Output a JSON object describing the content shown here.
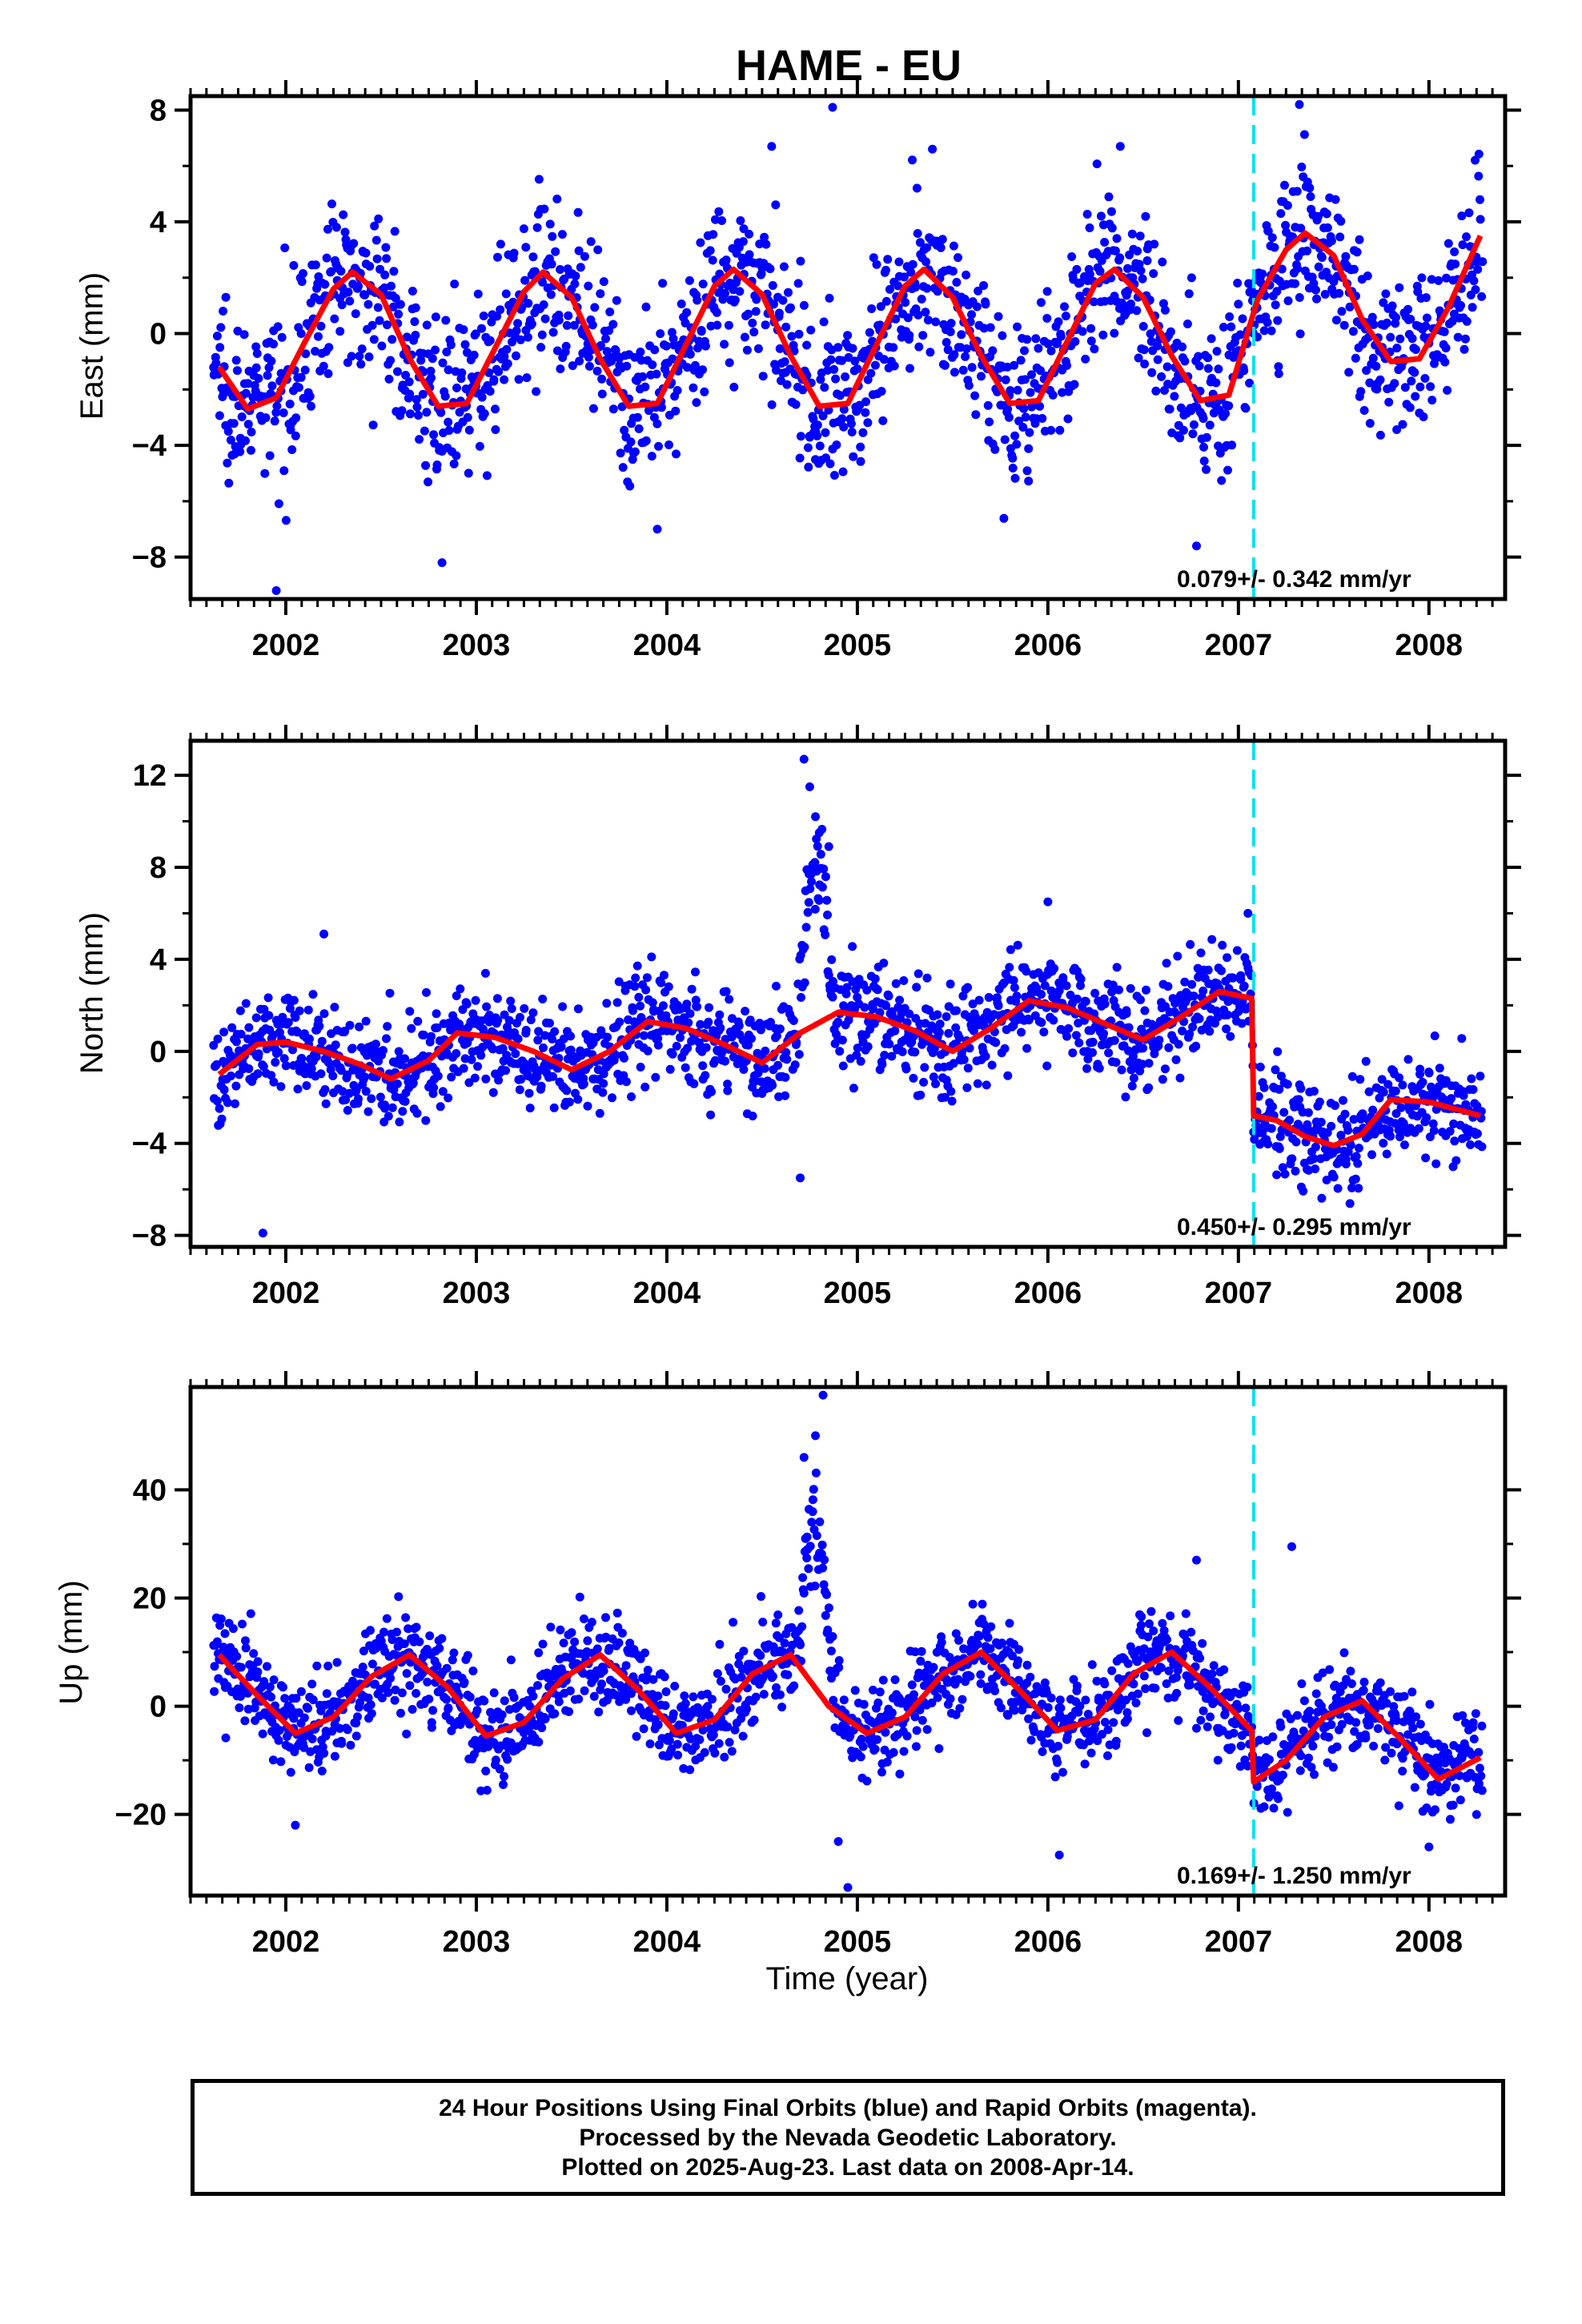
{
  "title": "HAME - EU",
  "xlabel": "Time (year)",
  "caption": {
    "line1": "24 Hour Positions Using Final Orbits (blue) and Rapid Orbits (magenta).",
    "line2": "Processed by the Nevada Geodetic Laboratory.",
    "line3": "Plotted on 2025-Aug-23. Last data on 2008-Apr-14."
  },
  "colors": {
    "final_orbits": "#0000ff",
    "model": "#ff0000",
    "event_line": "#00e5ee",
    "frame": "#000000"
  },
  "chart_data": [
    {
      "type": "scatter",
      "ylabel": "East (mm)",
      "rate_text": "0.079+/- 0.342 mm/yr",
      "xlim": [
        2001.5,
        2008.4
      ],
      "ylim": [
        -9.5,
        8.5
      ],
      "x_ticks": [
        2002,
        2003,
        2004,
        2005,
        2006,
        2007,
        2008
      ],
      "y_ticks": [
        -8,
        -4,
        0,
        4,
        8
      ],
      "event_lines_x": [
        2007.08
      ],
      "model_series": {
        "name": "model",
        "x": [
          2001.65,
          2001.8,
          2001.95,
          2002.1,
          2002.25,
          2002.35,
          2002.5,
          2002.65,
          2002.8,
          2002.95,
          2003.1,
          2003.25,
          2003.35,
          2003.5,
          2003.65,
          2003.8,
          2003.95,
          2004.1,
          2004.25,
          2004.35,
          2004.5,
          2004.65,
          2004.8,
          2004.95,
          2005.1,
          2005.25,
          2005.35,
          2005.5,
          2005.65,
          2005.8,
          2005.95,
          2006.1,
          2006.25,
          2006.35,
          2006.5,
          2006.65,
          2006.8,
          2006.95,
          2007.1,
          2007.25,
          2007.35,
          2007.5,
          2007.65,
          2007.8,
          2007.95,
          2008.1,
          2008.27
        ],
        "y": [
          -1.2,
          -2.7,
          -2.3,
          -0.3,
          1.6,
          2.2,
          1.4,
          -0.9,
          -2.6,
          -2.5,
          -0.5,
          1.5,
          2.2,
          1.3,
          -0.9,
          -2.6,
          -2.5,
          -0.4,
          1.7,
          2.3,
          1.4,
          -0.8,
          -2.6,
          -2.5,
          -0.4,
          1.7,
          2.3,
          1.3,
          -0.8,
          -2.5,
          -2.4,
          -0.3,
          1.8,
          2.3,
          1.3,
          -0.8,
          -2.4,
          -2.2,
          1.2,
          3.0,
          3.6,
          2.8,
          0.5,
          -1.0,
          -0.9,
          0.9,
          3.5
        ]
      },
      "point_cloud": {
        "x_start": 2001.62,
        "x_end": 2008.28,
        "count": 1700,
        "scatter_mm": 1.45,
        "outliers": [
          [
            2001.95,
            -9.2
          ],
          [
            2002.82,
            -8.2
          ],
          [
            2004.87,
            8.1
          ],
          [
            2007.32,
            8.2
          ],
          [
            2006.78,
            -7.6
          ],
          [
            2004.55,
            6.7
          ],
          [
            2006.38,
            6.7
          ],
          [
            2003.95,
            -7.0
          ]
        ]
      }
    },
    {
      "type": "scatter",
      "ylabel": "North (mm)",
      "rate_text": "0.450+/- 0.295 mm/yr",
      "xlim": [
        2001.5,
        2008.4
      ],
      "ylim": [
        -8.5,
        13.5
      ],
      "x_ticks": [
        2002,
        2003,
        2004,
        2005,
        2006,
        2007,
        2008
      ],
      "y_ticks": [
        -8,
        -4,
        0,
        4,
        8,
        12
      ],
      "event_lines_x": [
        2007.08
      ],
      "model_series": {
        "name": "model",
        "x": [
          2001.65,
          2001.85,
          2002.0,
          2002.2,
          2002.4,
          2002.55,
          2002.75,
          2002.9,
          2003.1,
          2003.3,
          2003.5,
          2003.7,
          2003.9,
          2004.1,
          2004.3,
          2004.5,
          2004.7,
          2004.9,
          2005.1,
          2005.3,
          2005.5,
          2005.7,
          2005.9,
          2006.1,
          2006.3,
          2006.5,
          2006.7,
          2006.9,
          2007.07,
          2007.08,
          2007.2,
          2007.35,
          2007.5,
          2007.65,
          2007.8,
          2008.0,
          2008.27
        ],
        "y": [
          -1.0,
          0.3,
          0.4,
          0.0,
          -0.6,
          -1.2,
          -0.4,
          0.8,
          0.6,
          0.0,
          -0.8,
          0.0,
          1.3,
          1.0,
          0.3,
          -0.5,
          0.8,
          1.7,
          1.5,
          0.9,
          0.0,
          1.0,
          2.2,
          1.9,
          1.2,
          0.5,
          1.5,
          2.6,
          2.3,
          -2.8,
          -3.0,
          -3.7,
          -4.1,
          -3.6,
          -2.1,
          -2.2,
          -2.8
        ]
      },
      "point_cloud": {
        "x_start": 2001.62,
        "x_end": 2008.28,
        "count": 1700,
        "scatter_mm": 1.1,
        "outliers": [
          [
            2001.88,
            -7.9
          ],
          [
            2004.72,
            12.7
          ],
          [
            2004.75,
            11.5
          ],
          [
            2004.78,
            10.2
          ],
          [
            2004.8,
            9.5
          ],
          [
            2004.85,
            8.9
          ],
          [
            2004.7,
            -5.5
          ],
          [
            2002.2,
            5.1
          ],
          [
            2006.0,
            6.5
          ],
          [
            2007.05,
            6.0
          ]
        ]
      }
    },
    {
      "type": "scatter",
      "ylabel": "Up (mm)",
      "rate_text": "0.169+/- 1.250 mm/yr",
      "xlim": [
        2001.5,
        2008.4
      ],
      "ylim": [
        -35,
        59
      ],
      "x_ticks": [
        2002,
        2003,
        2004,
        2005,
        2006,
        2007,
        2008
      ],
      "y_ticks": [
        -20,
        0,
        20,
        40
      ],
      "event_lines_x": [
        2007.08
      ],
      "model_series": {
        "name": "model",
        "x": [
          2001.65,
          2001.85,
          2002.05,
          2002.25,
          2002.45,
          2002.65,
          2002.85,
          2003.05,
          2003.25,
          2003.45,
          2003.65,
          2003.85,
          2004.05,
          2004.25,
          2004.45,
          2004.65,
          2004.85,
          2005.05,
          2005.25,
          2005.45,
          2005.65,
          2005.85,
          2006.05,
          2006.25,
          2006.45,
          2006.65,
          2006.85,
          2007.07,
          2007.08,
          2007.25,
          2007.45,
          2007.65,
          2007.85,
          2008.05,
          2008.27
        ],
        "y": [
          9.5,
          2.0,
          -5.0,
          -2.0,
          5.5,
          9.5,
          3.5,
          -5.5,
          -3.0,
          5.0,
          9.5,
          3.0,
          -5.0,
          -2.5,
          6.0,
          9.5,
          0.0,
          -5.0,
          -2.0,
          6.0,
          10.0,
          3.0,
          -4.5,
          -2.5,
          6.0,
          10.0,
          3.5,
          -4.5,
          -14.0,
          -10.0,
          -2.0,
          1.0,
          -6.0,
          -13.5,
          -9.5
        ]
      },
      "point_cloud": {
        "x_start": 2001.62,
        "x_end": 2008.28,
        "count": 1700,
        "scatter_mm": 4.5,
        "outliers": [
          [
            2004.82,
            57.5
          ],
          [
            2004.78,
            50.0
          ],
          [
            2004.72,
            46.0
          ],
          [
            2004.9,
            -25.0
          ],
          [
            2004.95,
            -33.5
          ],
          [
            2006.06,
            -27.5
          ],
          [
            2007.28,
            29.5
          ],
          [
            2008.0,
            -26.0
          ],
          [
            2002.05,
            -22.0
          ],
          [
            2006.78,
            27.0
          ]
        ]
      }
    }
  ]
}
